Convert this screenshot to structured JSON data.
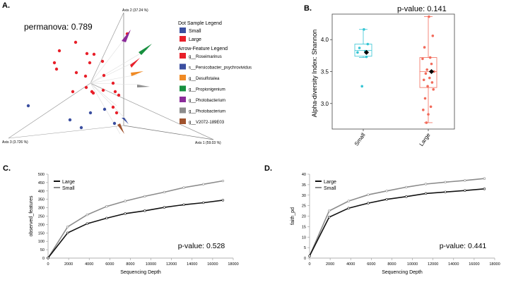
{
  "panelA": {
    "label": "A.",
    "stat_text": "permanova: 0.789",
    "axis1_label": "Axis 1 (59.03 %)",
    "axis2_label": "Axis 2 (37.24 %)",
    "axis3_label": "Axis 3 (3.726 %)",
    "dot_legend_title": "Dot Sample Legend",
    "dot_legend": [
      {
        "label": "Small",
        "color": "#3b4fa0"
      },
      {
        "label": "Large",
        "color": "#e8202a"
      }
    ],
    "arrow_legend_title": "Arrow-Feature Legend",
    "arrow_legend": [
      {
        "label": "g__Roseimarinus",
        "color": "#e8202a"
      },
      {
        "label": "s__Persicobacter_psychrovividus",
        "color": "#3b4fa0"
      },
      {
        "label": "g__Desulfotalea",
        "color": "#f08a24"
      },
      {
        "label": "g__Propionigenium",
        "color": "#17903f"
      },
      {
        "label": "g__Photobacterium",
        "color": "#8b2b9a"
      },
      {
        "label": "g__Photobacterium",
        "color": "#8c8c8c"
      },
      {
        "label": "g__V2072-189E03",
        "color": "#a0522d"
      }
    ]
  },
  "panelB": {
    "label": "B.",
    "pvalue": "p-value: 0.141"
  },
  "panelC": {
    "label": "C.",
    "pvalue": "p-value: 0.528"
  },
  "panelD": {
    "label": "D.",
    "pvalue": "p-value: 0.441"
  },
  "chart_data": [
    {
      "type": "scatter",
      "title": "",
      "xlabel": "",
      "ylabel": "Alpha-diversity Index: Shannon",
      "categories": [
        "Small",
        "Large"
      ],
      "ylim": [
        2.6,
        4.4
      ],
      "yticks": [
        3.0,
        3.5,
        4.0
      ],
      "colors": {
        "Small": "#36c5d4",
        "Large": "#f26b5b"
      },
      "series": [
        {
          "name": "Small",
          "values": [
            4.16,
            3.93,
            3.87,
            3.82,
            3.8,
            3.73,
            3.27
          ],
          "box": {
            "q1": 3.74,
            "median": 3.83,
            "q3": 3.93,
            "whisker_low": 3.72,
            "whisker_high": 4.16,
            "mean": 3.8
          }
        },
        {
          "name": "Large",
          "values": [
            4.36,
            4.06,
            3.88,
            3.72,
            3.7,
            3.62,
            3.53,
            3.5,
            3.47,
            3.4,
            3.37,
            3.33,
            3.27,
            3.22,
            3.08,
            2.95,
            2.9,
            2.83,
            2.7
          ],
          "box": {
            "q1": 3.25,
            "median": 3.5,
            "q3": 3.72,
            "whisker_low": 2.7,
            "whisker_high": 4.36,
            "mean": 3.5
          }
        }
      ]
    },
    {
      "type": "line",
      "title": "",
      "xlabel": "Sequencing Depth",
      "ylabel": "observed_features",
      "xlim": [
        0,
        18000
      ],
      "ylim": [
        0,
        500
      ],
      "xticks": [
        0,
        2000,
        4000,
        6000,
        8000,
        10000,
        12000,
        14000,
        16000,
        18000
      ],
      "yticks": [
        0,
        50,
        100,
        150,
        200,
        250,
        300,
        350,
        400,
        450,
        500
      ],
      "legend": "top-left",
      "x": [
        1,
        1900,
        3800,
        5700,
        7500,
        9400,
        11300,
        13200,
        15100,
        17000
      ],
      "series": [
        {
          "name": "Large",
          "color": "#111111",
          "values": [
            1,
            150,
            205,
            238,
            265,
            282,
            302,
            318,
            330,
            345
          ]
        },
        {
          "name": "Small",
          "color": "#8c8c8c",
          "values": [
            1,
            186,
            258,
            308,
            340,
            368,
            393,
            420,
            440,
            460
          ]
        }
      ]
    },
    {
      "type": "line",
      "title": "",
      "xlabel": "Sequencing Depth",
      "ylabel": "faith_pd",
      "xlim": [
        0,
        18000
      ],
      "ylim": [
        0,
        40
      ],
      "xticks": [
        0,
        2000,
        4000,
        6000,
        8000,
        10000,
        12000,
        14000,
        16000,
        18000
      ],
      "yticks": [
        0,
        5,
        10,
        15,
        20,
        25,
        30,
        35,
        40
      ],
      "legend": "top-left",
      "x": [
        1,
        1900,
        3800,
        5700,
        7500,
        9400,
        11300,
        13200,
        15100,
        17000
      ],
      "series": [
        {
          "name": "Large",
          "color": "#111111",
          "values": [
            1,
            19.5,
            23.8,
            26.2,
            28.0,
            29.3,
            30.8,
            31.5,
            32.2,
            33.0
          ]
        },
        {
          "name": "Small",
          "color": "#8c8c8c",
          "values": [
            1,
            22.5,
            27.2,
            30.2,
            32.0,
            33.8,
            35.3,
            36.2,
            37.0,
            37.9
          ]
        }
      ]
    }
  ]
}
